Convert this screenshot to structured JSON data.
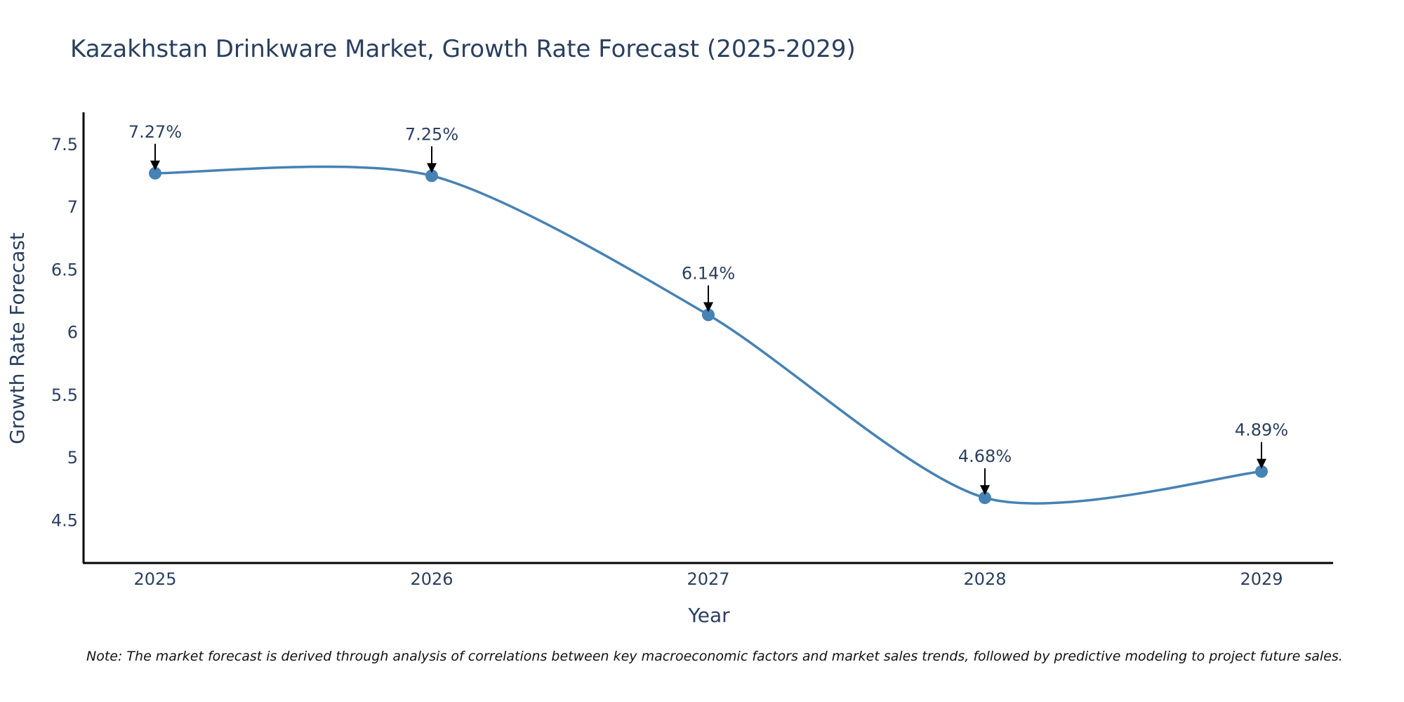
{
  "chart_data": {
    "type": "line",
    "title": "Kazakhstan Drinkware Market, Growth Rate Forecast (2025-2029)",
    "xlabel": "Year",
    "ylabel": "Growth Rate Forecast",
    "categories": [
      "2025",
      "2026",
      "2027",
      "2028",
      "2029"
    ],
    "values": [
      7.27,
      7.25,
      6.14,
      4.68,
      4.89
    ],
    "data_labels": [
      "7.27%",
      "7.25%",
      "6.14%",
      "4.68%",
      "4.89%"
    ],
    "y_ticks": [
      4.5,
      5,
      5.5,
      6,
      6.5,
      7,
      7.5
    ],
    "y_tick_labels": [
      "4.5",
      "5",
      "5.5",
      "6",
      "6.5",
      "7",
      "7.5"
    ],
    "ylim": [
      4.18,
      7.77
    ],
    "grid": false,
    "line_shape": "spline",
    "series_color": "#4682b4",
    "note": "Note: The market forecast is derived through analysis of correlations between key macroeconomic factors and market sales trends, followed by predictive modeling to project future sales."
  }
}
